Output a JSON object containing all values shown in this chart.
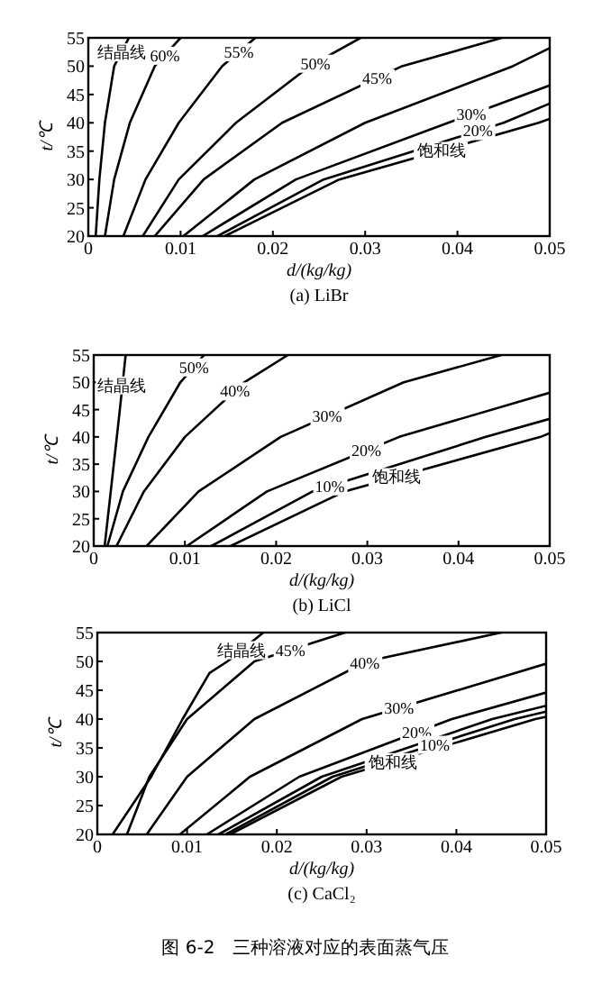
{
  "chart_data": [
    {
      "type": "line",
      "title": "(a) LiBr",
      "xlabel": "d/(kg/kg)",
      "ylabel": "t/℃",
      "xlim": [
        0,
        0.05
      ],
      "ylim": [
        20,
        55
      ],
      "xticks": [
        0,
        0.01,
        0.02,
        0.03,
        0.04,
        0.05
      ],
      "yticks": [
        20,
        25,
        30,
        35,
        40,
        45,
        50,
        55
      ],
      "series": [
        {
          "color": "#000000",
          "x": [
            0.0008,
            0.0012,
            0.0018,
            0.0028,
            0.0044
          ],
          "values": [
            20,
            30,
            40,
            50,
            55
          ]
        },
        {
          "color": "#000000",
          "x": [
            0.0018,
            0.0028,
            0.0045,
            0.0072,
            0.01
          ],
          "values": [
            20,
            30,
            40,
            50,
            55
          ]
        },
        {
          "color": "#000000",
          "x": [
            0.0038,
            0.0062,
            0.0098,
            0.0145,
            0.0181
          ],
          "values": [
            20,
            30,
            40,
            50,
            55
          ]
        },
        {
          "color": "#000000",
          "x": [
            0.0059,
            0.0098,
            0.016,
            0.024,
            0.0295
          ],
          "values": [
            20,
            30,
            40,
            50,
            55
          ]
        },
        {
          "color": "#000000",
          "x": [
            0.0072,
            0.0125,
            0.021,
            0.034,
            0.0448
          ],
          "values": [
            20,
            30,
            40,
            50,
            55
          ]
        },
        {
          "color": "#000000",
          "x": [
            0.0103,
            0.018,
            0.03,
            0.046,
            0.05
          ],
          "values": [
            20,
            30,
            40,
            50,
            53.2
          ]
        },
        {
          "color": "#000000",
          "x": [
            0.0124,
            0.0225,
            0.039,
            0.05
          ],
          "values": [
            20,
            30,
            40,
            46.6
          ]
        },
        {
          "color": "#000000",
          "x": [
            0.014,
            0.0255,
            0.045,
            0.05
          ],
          "values": [
            20,
            30,
            40,
            43.4
          ]
        },
        {
          "color": "#000000",
          "x": [
            0.0148,
            0.0272,
            0.0488,
            0.05
          ],
          "values": [
            20,
            30,
            40,
            40.7
          ]
        }
      ],
      "annotations": [
        {
          "text": "结晶线",
          "x": 0.0036,
          "y": 52.5
        },
        {
          "text": "60%",
          "x": 0.0083,
          "y": 51.9
        },
        {
          "text": "55%",
          "x": 0.0163,
          "y": 52.5
        },
        {
          "text": "50%",
          "x": 0.0246,
          "y": 50.5
        },
        {
          "text": "45%",
          "x": 0.0313,
          "y": 47.9
        },
        {
          "text": "30%",
          "x": 0.0415,
          "y": 41.5
        },
        {
          "text": "20%",
          "x": 0.0422,
          "y": 38.6
        },
        {
          "text": "饱和线",
          "x": 0.0383,
          "y": 35.1
        }
      ]
    },
    {
      "type": "line",
      "title": "(b) LiCl",
      "xlabel": "d/(kg/kg)",
      "ylabel": "t/℃",
      "xlim": [
        0,
        0.05
      ],
      "ylim": [
        20,
        55
      ],
      "xticks": [
        0,
        0.01,
        0.02,
        0.03,
        0.04,
        0.05
      ],
      "yticks": [
        20,
        25,
        30,
        35,
        40,
        45,
        50,
        55
      ],
      "series": [
        {
          "color": "#000000",
          "x": [
            0.0012,
            0.002,
            0.0028,
            0.0035
          ],
          "values": [
            20,
            32,
            44,
            55
          ]
        },
        {
          "color": "#000000",
          "x": [
            0.0015,
            0.0032,
            0.006,
            0.0095,
            0.0121
          ],
          "values": [
            20,
            30,
            40,
            50,
            55
          ]
        },
        {
          "color": "#000000",
          "x": [
            0.0025,
            0.0055,
            0.01,
            0.0165,
            0.0213
          ],
          "values": [
            20,
            30,
            40,
            50,
            55
          ]
        },
        {
          "color": "#000000",
          "x": [
            0.0058,
            0.0115,
            0.0205,
            0.034,
            0.0447
          ],
          "values": [
            20,
            30,
            40,
            50,
            55
          ]
        },
        {
          "color": "#000000",
          "x": [
            0.0102,
            0.019,
            0.0335,
            0.05
          ],
          "values": [
            20,
            30,
            40,
            48.1
          ]
        },
        {
          "color": "#000000",
          "x": [
            0.0129,
            0.024,
            0.043,
            0.05
          ],
          "values": [
            20,
            30,
            40,
            43.3
          ]
        },
        {
          "color": "#000000",
          "x": [
            0.015,
            0.0275,
            0.049,
            0.05
          ],
          "values": [
            20,
            30,
            40,
            40.7
          ]
        }
      ],
      "annotations": [
        {
          "text": "结晶线",
          "x": 0.0031,
          "y": 49.5
        },
        {
          "text": "50%",
          "x": 0.011,
          "y": 52.8
        },
        {
          "text": "40%",
          "x": 0.0155,
          "y": 48.4
        },
        {
          "text": "30%",
          "x": 0.0256,
          "y": 43.8
        },
        {
          "text": "10%",
          "x": 0.0259,
          "y": 31.0
        },
        {
          "text": "20%",
          "x": 0.0299,
          "y": 37.5
        },
        {
          "text": "饱和线",
          "x": 0.0332,
          "y": 32.7
        }
      ]
    },
    {
      "type": "line",
      "title": "(c) CaCl₂",
      "xlabel": "d/(kg/kg)",
      "ylabel": "t/℃",
      "xlim": [
        0,
        0.05
      ],
      "ylim": [
        20,
        55
      ],
      "xticks": [
        0,
        0.01,
        0.02,
        0.03,
        0.04,
        0.05
      ],
      "yticks": [
        20,
        25,
        30,
        35,
        40,
        45,
        50,
        55
      ],
      "series": [
        {
          "color": "#000000",
          "x": [
            0.0017,
            0.006,
            0.0095,
            0.0125,
            0.0145,
            0.0185
          ],
          "values": [
            20,
            30,
            40,
            48,
            50,
            55
          ]
        },
        {
          "color": "#000000",
          "x": [
            0.0033,
            0.0058,
            0.01,
            0.0175,
            0.0276
          ],
          "values": [
            20,
            30,
            40,
            50,
            55
          ]
        },
        {
          "color": "#000000",
          "x": [
            0.0055,
            0.01,
            0.0175,
            0.03,
            0.045
          ],
          "values": [
            20,
            30,
            40,
            50,
            55
          ]
        },
        {
          "color": "#000000",
          "x": [
            0.0092,
            0.017,
            0.0295,
            0.05
          ],
          "values": [
            20,
            30,
            40,
            49.6
          ]
        },
        {
          "color": "#000000",
          "x": [
            0.0122,
            0.0225,
            0.0395,
            0.05
          ],
          "values": [
            20,
            30,
            40,
            44.6
          ]
        },
        {
          "color": "#000000",
          "x": [
            0.0135,
            0.025,
            0.044,
            0.05
          ],
          "values": [
            20,
            30,
            40,
            42.3
          ]
        },
        {
          "color": "#000000",
          "x": [
            0.0143,
            0.0262,
            0.0465,
            0.05
          ],
          "values": [
            20,
            30,
            40,
            41.3
          ]
        },
        {
          "color": "#000000",
          "x": [
            0.0148,
            0.0272,
            0.0488,
            0.05
          ],
          "values": [
            20,
            30,
            40,
            40.4
          ]
        }
      ],
      "annotations": [
        {
          "text": "结晶线",
          "x": 0.0161,
          "y": 52
        },
        {
          "text": "45%",
          "x": 0.0215,
          "y": 52
        },
        {
          "text": "40%",
          "x": 0.0298,
          "y": 49.8
        },
        {
          "text": "30%",
          "x": 0.0336,
          "y": 41.9
        },
        {
          "text": "20%",
          "x": 0.0356,
          "y": 37.7
        },
        {
          "text": "10%",
          "x": 0.0376,
          "y": 35.6
        },
        {
          "text": "饱和线",
          "x": 0.0329,
          "y": 32.6
        },
        "图 6-2　三种溶液对应的表面蒸气压"
      ]
    }
  ]
}
